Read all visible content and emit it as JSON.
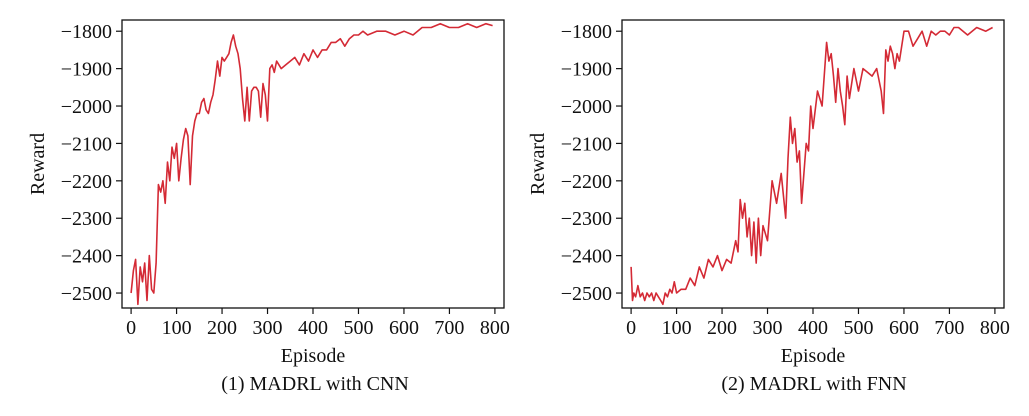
{
  "chart_data": [
    {
      "type": "line",
      "caption": "(1) MADRL with CNN",
      "xlabel": "Episode",
      "ylabel": "Reward",
      "xlim": [
        -20,
        820
      ],
      "ylim": [
        -2540,
        -1770
      ],
      "xticks": [
        0,
        100,
        200,
        300,
        400,
        500,
        600,
        700,
        800
      ],
      "yticks": [
        -2500,
        -2400,
        -2300,
        -2200,
        -2100,
        -2000,
        -1900,
        -1800
      ],
      "ytick_labels": [
        "−2500",
        "−2400",
        "−2300",
        "−2200",
        "−2100",
        "−2000",
        "−1900",
        "−1800"
      ],
      "grid": false,
      "color": "#d42a35",
      "series": [
        {
          "x": [
            0,
            5,
            10,
            15,
            20,
            25,
            30,
            35,
            40,
            45,
            50,
            55,
            60,
            65,
            70,
            75,
            80,
            85,
            90,
            95,
            100,
            105,
            110,
            115,
            120,
            125,
            130,
            135,
            140,
            145,
            150,
            155,
            160,
            165,
            170,
            175,
            180,
            185,
            190,
            195,
            200,
            205,
            210,
            215,
            220,
            225,
            230,
            235,
            240,
            245,
            250,
            255,
            260,
            265,
            270,
            275,
            280,
            285,
            290,
            295,
            300,
            305,
            310,
            315,
            320,
            330,
            340,
            350,
            360,
            370,
            380,
            390,
            400,
            410,
            420,
            430,
            440,
            450,
            460,
            470,
            480,
            490,
            500,
            510,
            520,
            540,
            560,
            580,
            600,
            620,
            640,
            660,
            680,
            700,
            720,
            740,
            760,
            780,
            795
          ],
          "y": [
            -2500,
            -2440,
            -2410,
            -2530,
            -2430,
            -2470,
            -2420,
            -2520,
            -2400,
            -2490,
            -2500,
            -2420,
            -2210,
            -2230,
            -2200,
            -2260,
            -2150,
            -2200,
            -2110,
            -2140,
            -2100,
            -2200,
            -2140,
            -2090,
            -2060,
            -2080,
            -2210,
            -2080,
            -2040,
            -2020,
            -2020,
            -1990,
            -1980,
            -2010,
            -2020,
            -1990,
            -1970,
            -1930,
            -1880,
            -1920,
            -1870,
            -1880,
            -1870,
            -1860,
            -1830,
            -1810,
            -1840,
            -1860,
            -1900,
            -1980,
            -2040,
            -1950,
            -2040,
            -1960,
            -1950,
            -1950,
            -1960,
            -2030,
            -1940,
            -1970,
            -2040,
            -1900,
            -1890,
            -1910,
            -1880,
            -1900,
            -1890,
            -1880,
            -1870,
            -1890,
            -1860,
            -1880,
            -1850,
            -1870,
            -1850,
            -1850,
            -1830,
            -1830,
            -1820,
            -1840,
            -1820,
            -1810,
            -1810,
            -1800,
            -1810,
            -1800,
            -1800,
            -1810,
            -1800,
            -1810,
            -1790,
            -1790,
            -1780,
            -1790,
            -1790,
            -1780,
            -1790,
            -1780,
            -1785
          ]
        }
      ]
    },
    {
      "type": "line",
      "caption": "(2) MADRL with FNN",
      "xlabel": "Episode",
      "ylabel": "Reward",
      "xlim": [
        -20,
        820
      ],
      "ylim": [
        -2540,
        -1770
      ],
      "xticks": [
        0,
        100,
        200,
        300,
        400,
        500,
        600,
        700,
        800
      ],
      "yticks": [
        -2500,
        -2400,
        -2300,
        -2200,
        -2100,
        -2000,
        -1900,
        -1800
      ],
      "ytick_labels": [
        "−2500",
        "−2400",
        "−2300",
        "−2200",
        "−2100",
        "−2000",
        "−1900",
        "−1800"
      ],
      "grid": false,
      "color": "#d42a35",
      "series": [
        {
          "x": [
            0,
            3,
            6,
            10,
            15,
            20,
            25,
            30,
            35,
            40,
            45,
            50,
            55,
            60,
            65,
            70,
            75,
            80,
            85,
            90,
            95,
            100,
            110,
            120,
            130,
            140,
            150,
            160,
            170,
            180,
            190,
            200,
            210,
            220,
            230,
            235,
            240,
            245,
            250,
            255,
            260,
            265,
            270,
            275,
            280,
            285,
            290,
            300,
            310,
            320,
            330,
            340,
            345,
            350,
            355,
            360,
            365,
            370,
            375,
            380,
            385,
            390,
            395,
            400,
            410,
            420,
            430,
            435,
            440,
            445,
            450,
            455,
            460,
            465,
            470,
            475,
            480,
            490,
            500,
            510,
            520,
            530,
            540,
            550,
            555,
            560,
            565,
            570,
            575,
            580,
            585,
            590,
            600,
            610,
            620,
            630,
            640,
            650,
            660,
            670,
            680,
            690,
            700,
            710,
            720,
            740,
            760,
            780,
            795
          ],
          "y": [
            -2430,
            -2520,
            -2500,
            -2510,
            -2480,
            -2510,
            -2500,
            -2520,
            -2500,
            -2510,
            -2500,
            -2520,
            -2500,
            -2510,
            -2520,
            -2530,
            -2500,
            -2510,
            -2490,
            -2500,
            -2470,
            -2500,
            -2490,
            -2490,
            -2460,
            -2480,
            -2430,
            -2460,
            -2410,
            -2430,
            -2400,
            -2440,
            -2410,
            -2420,
            -2360,
            -2390,
            -2250,
            -2300,
            -2260,
            -2350,
            -2300,
            -2400,
            -2310,
            -2420,
            -2300,
            -2400,
            -2320,
            -2360,
            -2200,
            -2260,
            -2180,
            -2300,
            -2140,
            -2030,
            -2100,
            -2060,
            -2150,
            -2120,
            -2260,
            -2180,
            -2100,
            -2120,
            -2000,
            -2060,
            -1960,
            -2000,
            -1830,
            -1880,
            -1860,
            -1920,
            -1990,
            -1900,
            -1960,
            -2000,
            -2050,
            -1920,
            -1980,
            -1900,
            -1960,
            -1900,
            -1910,
            -1920,
            -1900,
            -1960,
            -2020,
            -1850,
            -1880,
            -1840,
            -1860,
            -1900,
            -1860,
            -1880,
            -1800,
            -1800,
            -1840,
            -1820,
            -1800,
            -1840,
            -1800,
            -1810,
            -1800,
            -1800,
            -1810,
            -1790,
            -1790,
            -1810,
            -1790,
            -1800,
            -1790
          ]
        }
      ]
    }
  ]
}
